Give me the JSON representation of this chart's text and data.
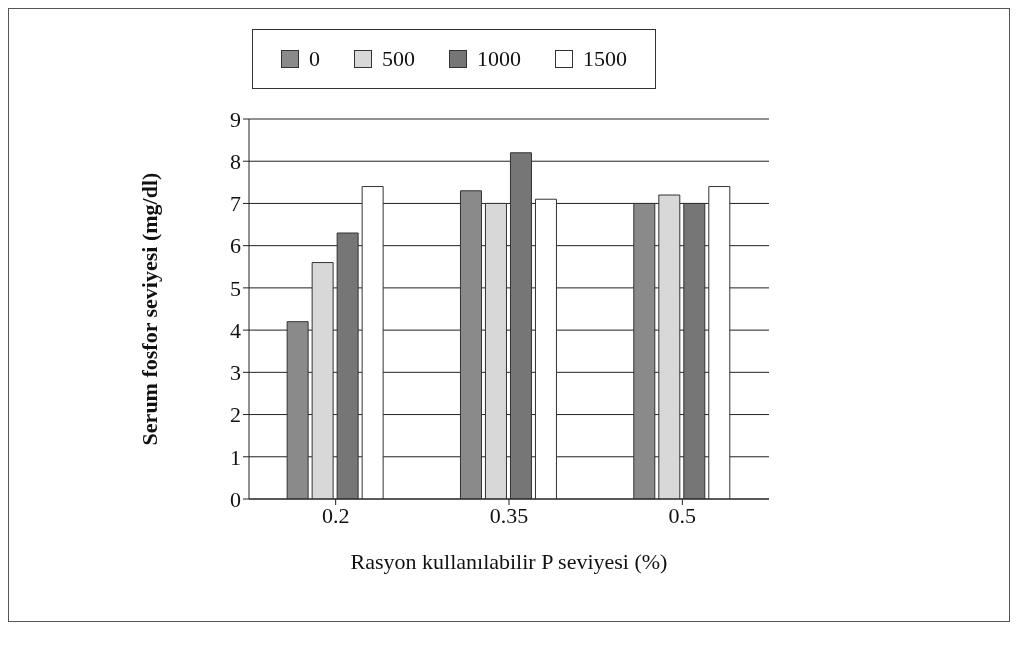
{
  "chart_data": {
    "type": "bar",
    "xlabel": "Rasyon kullanılabilir P seviyesi (%)",
    "ylabel": "Serum fosfor seviyesi (mg/dl)",
    "categories": [
      "0.2",
      "0.35",
      "0.5"
    ],
    "series": [
      {
        "name": "0",
        "color": "#8a8a8a",
        "values": [
          4.2,
          7.3,
          7.0
        ]
      },
      {
        "name": "500",
        "color": "#d8d8d8",
        "values": [
          5.6,
          7.0,
          7.2
        ]
      },
      {
        "name": "1000",
        "color": "#767676",
        "values": [
          6.3,
          8.2,
          7.0
        ]
      },
      {
        "name": "1500",
        "color": "#ffffff",
        "values": [
          7.4,
          7.1,
          7.4
        ]
      }
    ],
    "ylim": [
      0,
      9
    ],
    "yticks": [
      0,
      1,
      2,
      3,
      4,
      5,
      6,
      7,
      8,
      9
    ],
    "grid": "y",
    "legend": "top"
  }
}
